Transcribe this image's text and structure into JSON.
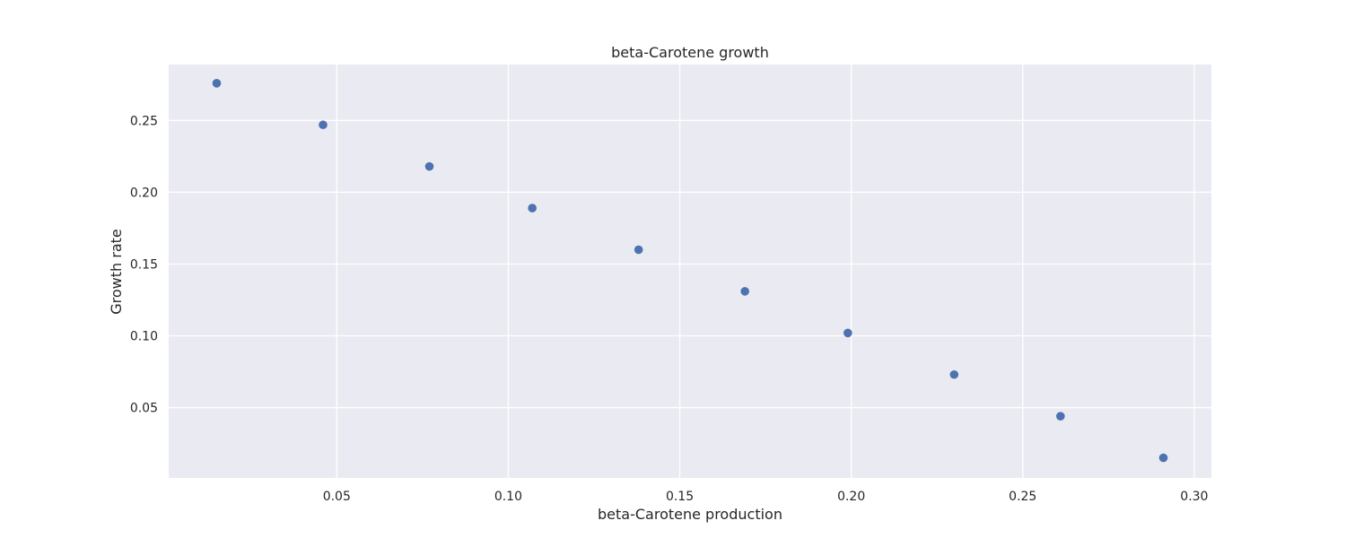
{
  "chart_data": {
    "type": "scatter",
    "title": "beta-Carotene growth",
    "xlabel": "beta-Carotene production",
    "ylabel": "Growth rate",
    "x": [
      0.015,
      0.046,
      0.077,
      0.107,
      0.138,
      0.169,
      0.199,
      0.23,
      0.261,
      0.291
    ],
    "y": [
      0.276,
      0.247,
      0.218,
      0.189,
      0.16,
      0.131,
      0.102,
      0.073,
      0.044,
      0.015
    ],
    "xlim": [
      0.001,
      0.305
    ],
    "ylim": [
      0.001,
      0.289
    ],
    "xticks": [
      0.05,
      0.1,
      0.15,
      0.2,
      0.25,
      0.3
    ],
    "xtick_labels": [
      "0.05",
      "0.10",
      "0.15",
      "0.20",
      "0.25",
      "0.30"
    ],
    "yticks": [
      0.05,
      0.1,
      0.15,
      0.2,
      0.25
    ],
    "ytick_labels": [
      "0.05",
      "0.10",
      "0.15",
      "0.20",
      "0.25"
    ],
    "grid": true,
    "legend": "none",
    "marker_color": "#4c72b0",
    "background_color": "#eaeaf2"
  }
}
